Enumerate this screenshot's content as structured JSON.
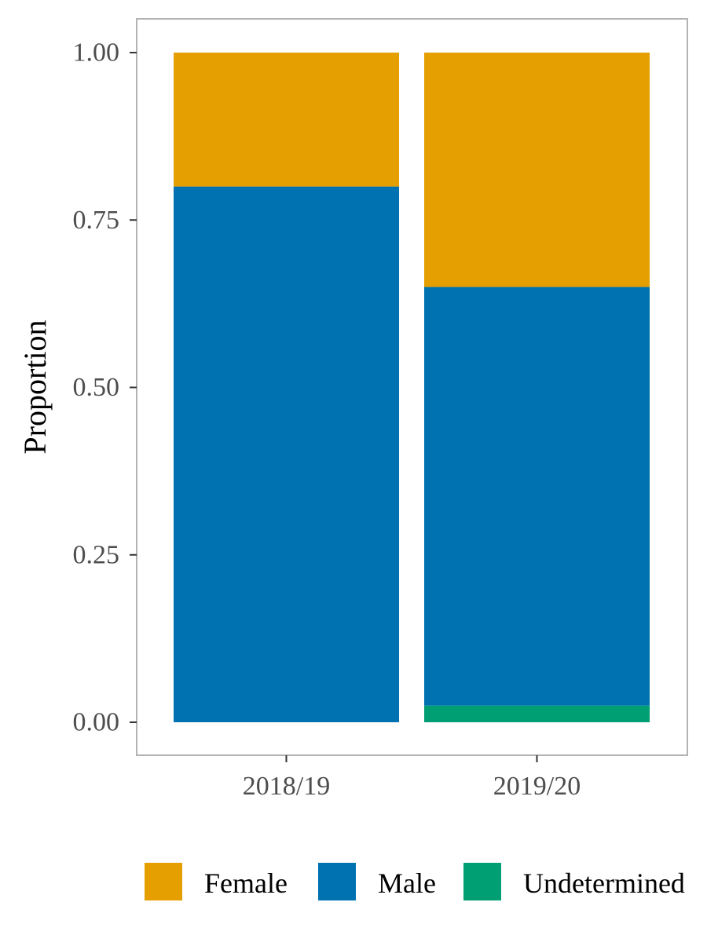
{
  "chart_data": {
    "type": "bar",
    "stacked": true,
    "categories": [
      "2018/19",
      "2019/20"
    ],
    "series": [
      {
        "name": "Undetermined",
        "color": "#009E73",
        "values": [
          0.0,
          0.025
        ]
      },
      {
        "name": "Male",
        "color": "#0072B2",
        "values": [
          0.8,
          0.625
        ]
      },
      {
        "name": "Female",
        "color": "#E69F00",
        "values": [
          0.2,
          0.35
        ]
      }
    ],
    "legend_order": [
      "Female",
      "Male",
      "Undetermined"
    ],
    "title": "",
    "xlabel": "",
    "ylabel": "Proportion",
    "ylim": [
      0,
      1
    ],
    "yticks": [
      "0.00",
      "0.25",
      "0.50",
      "0.75",
      "1.00"
    ],
    "grid": false,
    "legend_position": "bottom",
    "panel_border_color": "#b3b3b3"
  }
}
